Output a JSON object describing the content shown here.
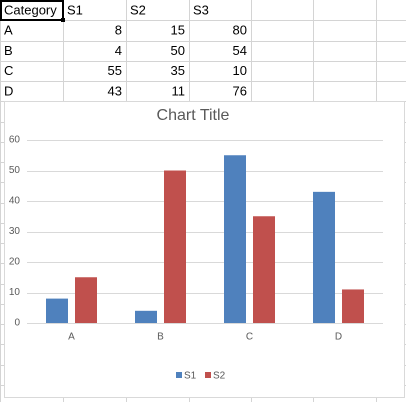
{
  "table": {
    "header": [
      "Category",
      "S1",
      "S2",
      "S3"
    ],
    "rows": [
      [
        "A",
        8,
        15,
        80
      ],
      [
        "B",
        4,
        50,
        54
      ],
      [
        "C",
        55,
        35,
        10
      ],
      [
        "D",
        43,
        11,
        76
      ]
    ]
  },
  "chart_data": {
    "type": "bar",
    "title": "Chart Title",
    "categories": [
      "A",
      "B",
      "C",
      "D"
    ],
    "series": [
      {
        "name": "S1",
        "color": "#4f81bd",
        "values": [
          8,
          4,
          55,
          43
        ]
      },
      {
        "name": "S2",
        "color": "#c0504d",
        "values": [
          15,
          50,
          35,
          11
        ]
      }
    ],
    "ylim": [
      0,
      60
    ],
    "yticks": [
      0,
      10,
      20,
      30,
      40,
      50,
      60
    ],
    "grid": true,
    "legend": "bottom"
  }
}
